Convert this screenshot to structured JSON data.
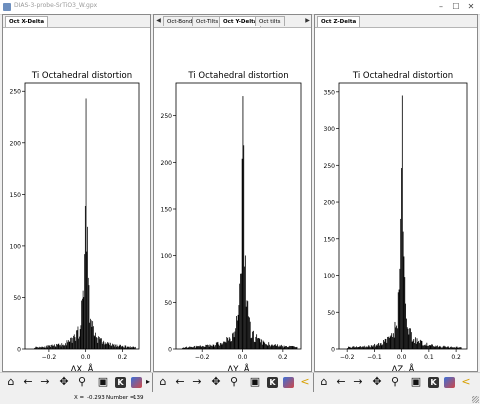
{
  "window": {
    "title": "DIAS-3-probe-SrTiO3_W.gpx"
  },
  "tabs_left": [
    "Oct X-Delta"
  ],
  "tabs_middle": [
    "Oct-Bond",
    "Oct-Tilts",
    "Oct Y-Delta",
    "Oct tilts"
  ],
  "tabs_right": [
    "Oct Z-Delta"
  ],
  "toolbar": {
    "icons": [
      "home-icon",
      "back-arrow-icon",
      "forward-arrow-icon",
      "pan-icon",
      "zoom-icon",
      "save-icon",
      "key-icon",
      "image-icon",
      "subplots-icon"
    ],
    "k_label": "K"
  },
  "status": {
    "x_label": "X =",
    "x_value": "-0.293",
    "number_label": "Number =",
    "number_value": "139"
  },
  "chart_data": [
    {
      "type": "bar",
      "title": "Ti Octahedral distortion",
      "xlabel": "ΔX, Å",
      "ylabel": "",
      "xlim": [
        -0.33,
        0.29
      ],
      "ylim": [
        0,
        258
      ],
      "xticks": [
        -0.2,
        0.0,
        0.2
      ],
      "xtick_labels": [
        "−0.2",
        "0.0",
        "0.2"
      ],
      "yticks": [
        0,
        50,
        100,
        150,
        200,
        250
      ],
      "bin_width": 0.004,
      "center": 0.0,
      "peak": 243,
      "half_width": 0.03,
      "tail_extent": [
        -0.28,
        0.27
      ]
    },
    {
      "type": "bar",
      "title": "Ti Octahedral distortion",
      "xlabel": "ΔY, Å",
      "ylabel": "",
      "xlim": [
        -0.33,
        0.29
      ],
      "ylim": [
        0,
        285
      ],
      "xticks": [
        -0.2,
        0.0,
        0.2
      ],
      "xtick_labels": [
        "−0.2",
        "0.0",
        "0.2"
      ],
      "yticks": [
        0,
        50,
        100,
        150,
        200,
        250
      ],
      "bin_width": 0.004,
      "center": 0.0,
      "peak": 271,
      "half_width": 0.03,
      "tail_extent": [
        -0.3,
        0.27
      ]
    },
    {
      "type": "bar",
      "title": "Ti Octahedral distortion",
      "xlabel": "ΔZ, Å",
      "ylabel": "",
      "xlim": [
        -0.23,
        0.24
      ],
      "ylim": [
        0,
        362
      ],
      "xticks": [
        -0.2,
        -0.1,
        0.0,
        0.1,
        0.2
      ],
      "xtick_labels": [
        "−0.2",
        "−0.1",
        "0.0",
        "0.1",
        "0.2"
      ],
      "yticks": [
        0,
        50,
        100,
        150,
        200,
        250,
        300,
        350
      ],
      "bin_width": 0.003,
      "center": 0.0,
      "peak": 345,
      "half_width": 0.02,
      "tail_extent": [
        -0.2,
        0.22
      ]
    }
  ]
}
